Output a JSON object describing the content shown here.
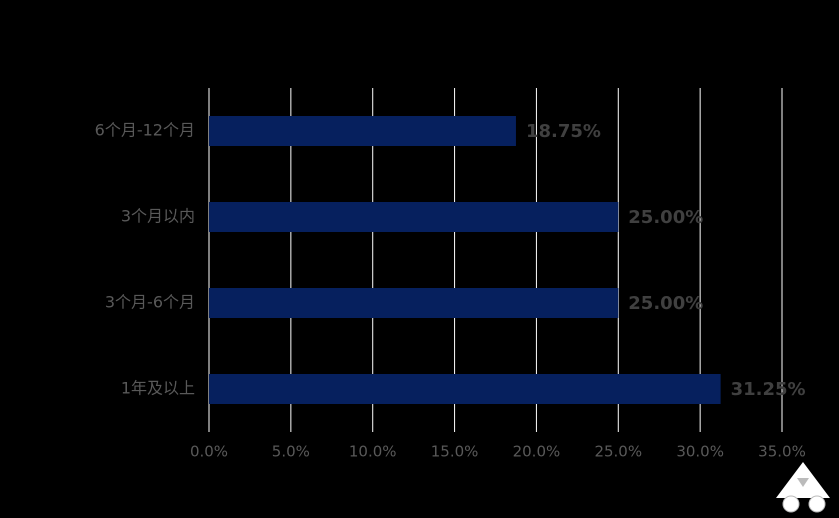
{
  "chart_data": {
    "type": "hbar",
    "categories": [
      "6个月-12个月",
      "3个月以内",
      "3个月-6个月",
      "1年及以上"
    ],
    "values": [
      18.75,
      25,
      25,
      31.25
    ],
    "value_labels": [
      "18.75%",
      "25.00%",
      "25.00%",
      "31.25%"
    ],
    "color": "#06205e",
    "xlim": [
      0,
      35
    ],
    "xticks": [
      {
        "value": 0,
        "label": "0.0%"
      },
      {
        "value": 5,
        "label": "5.0%"
      },
      {
        "value": 10,
        "label": "10.0%"
      },
      {
        "value": 15,
        "label": "15.0%"
      },
      {
        "value": 20,
        "label": "20.0%"
      },
      {
        "value": 25,
        "label": "25.0%"
      },
      {
        "value": 30,
        "label": "30.0%"
      },
      {
        "value": 35,
        "label": "35.0%"
      }
    ],
    "grid": true
  }
}
